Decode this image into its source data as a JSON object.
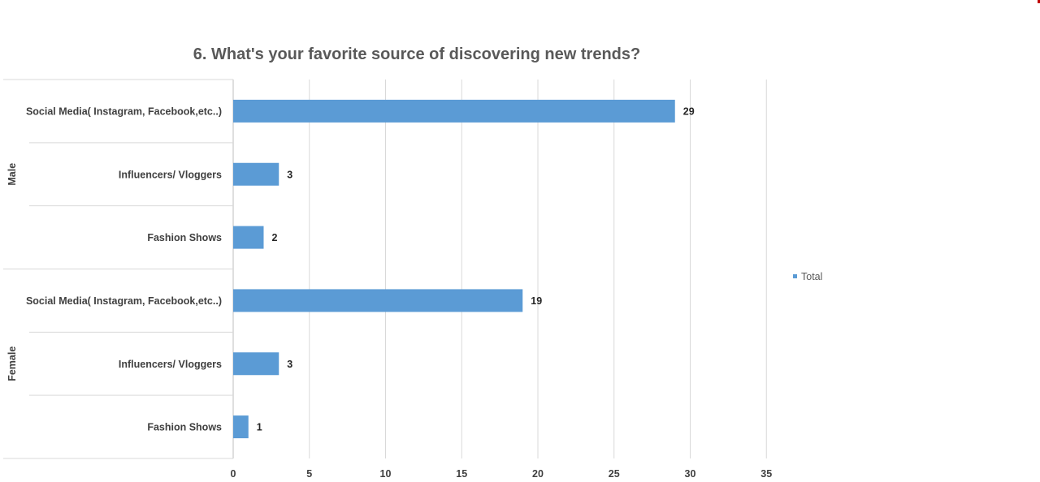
{
  "chart_data": {
    "type": "bar",
    "orientation": "horizontal",
    "title": "6. What's your favorite source of discovering new trends?",
    "xlabel": "",
    "ylabel": "",
    "xlim": [
      0,
      35
    ],
    "x_ticks": [
      0,
      5,
      10,
      15,
      20,
      25,
      30,
      35
    ],
    "grid": true,
    "legend_position": "right",
    "bar_color": "#5b9bd5",
    "groups": [
      {
        "label": "Male",
        "categories": [
          "Social Media( Instagram, Facebook,etc..)",
          "Influencers/ Vloggers",
          "Fashion Shows"
        ],
        "values": [
          29,
          3,
          2
        ]
      },
      {
        "label": "Female",
        "categories": [
          "Social Media( Instagram, Facebook,etc..)",
          "Influencers/ Vloggers",
          "Fashion Shows"
        ],
        "values": [
          19,
          3,
          1
        ]
      }
    ],
    "series": [
      {
        "name": "Total",
        "values": [
          29,
          3,
          2,
          19,
          3,
          1
        ]
      }
    ]
  }
}
